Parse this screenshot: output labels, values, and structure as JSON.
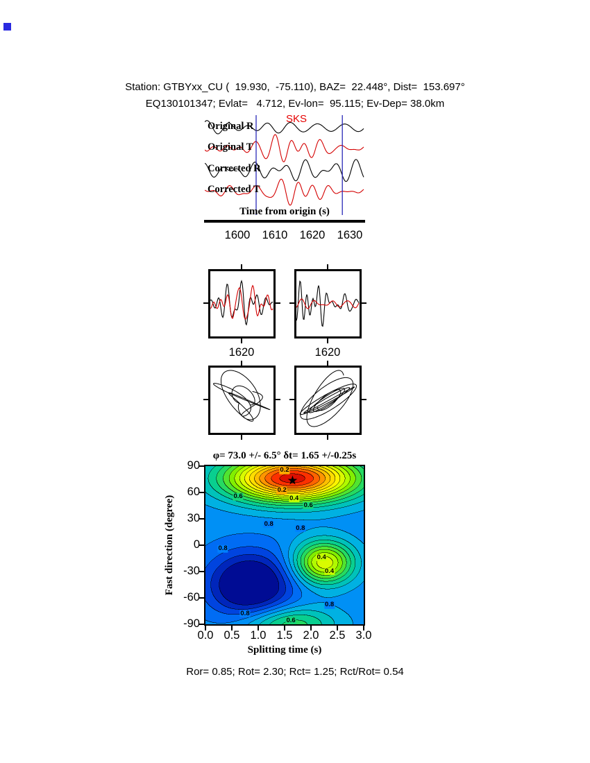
{
  "header": {
    "line1": "Station: GTBYxx_CU (  19.930,  -75.110), BAZ=  22.448°, Dist=  153.697°",
    "line2": "EQ130101347; Evlat=   4.712, Ev-lon=  95.115; Ev-Dep= 38.0km"
  },
  "corner_marker": {
    "color": "#2a2ae0"
  },
  "waveform_panel": {
    "phase_label": "SKS",
    "phase_color": "#e60000",
    "traces": [
      {
        "label": "Original R",
        "color": "#000000"
      },
      {
        "label": "Original T",
        "color": "#d40000"
      },
      {
        "label": "Corrected R",
        "color": "#000000"
      },
      {
        "label": "Corrected T",
        "color": "#d40000"
      }
    ],
    "window_t": [
      1605,
      1628
    ],
    "window_color": "#2929b8",
    "xaxis": {
      "label": "Time from origin (s)",
      "ticks": [
        "1600",
        "1610",
        "1620",
        "1630"
      ]
    }
  },
  "zoom_boxes": {
    "ticks": [
      "1620",
      "1620"
    ]
  },
  "contour": {
    "title": "φ= 73.0 +/- 6.5° δt= 1.65 +/-0.25s",
    "ylabel": "Fast direction (degree)",
    "xlabel": "Splitting time (s)",
    "yticks": [
      "90",
      "60",
      "30",
      "0",
      "-30",
      "-60",
      "-90"
    ],
    "xticks": [
      "0.0",
      "0.5",
      "1.0",
      "1.5",
      "2.0",
      "2.5",
      "3.0"
    ],
    "star": {
      "t": 1.65,
      "phi": 73,
      "glyph": "★"
    },
    "labels": [
      {
        "t": 1.5,
        "phi": 85,
        "v": "0.2"
      },
      {
        "t": 0.62,
        "phi": 55,
        "v": "0.6"
      },
      {
        "t": 1.45,
        "phi": 62,
        "v": "0.2"
      },
      {
        "t": 1.68,
        "phi": 53,
        "v": "0.4"
      },
      {
        "t": 1.95,
        "phi": 45,
        "v": "0.6"
      },
      {
        "t": 1.2,
        "phi": 24,
        "v": "0.8"
      },
      {
        "t": 1.8,
        "phi": 19,
        "v": "0.8"
      },
      {
        "t": 0.33,
        "phi": -4,
        "v": "0.8"
      },
      {
        "t": 2.2,
        "phi": -14,
        "v": "0.4"
      },
      {
        "t": 2.35,
        "phi": -30,
        "v": "0.4"
      },
      {
        "t": 0.75,
        "phi": -78,
        "v": "0.8"
      },
      {
        "t": 1.62,
        "phi": -86,
        "v": "0.6"
      },
      {
        "t": 2.35,
        "phi": -68,
        "v": "0.8"
      }
    ],
    "colormap": [
      [
        0.0,
        "#cc0000"
      ],
      [
        0.08,
        "#ff3300"
      ],
      [
        0.16,
        "#ff8800"
      ],
      [
        0.24,
        "#ffcc00"
      ],
      [
        0.32,
        "#fff200"
      ],
      [
        0.4,
        "#c8ff00"
      ],
      [
        0.48,
        "#7dee00"
      ],
      [
        0.56,
        "#2edd55"
      ],
      [
        0.64,
        "#00cc9c"
      ],
      [
        0.72,
        "#00b4e0"
      ],
      [
        0.8,
        "#0080ff"
      ],
      [
        0.88,
        "#0040dd"
      ],
      [
        0.95,
        "#0018a8"
      ],
      [
        1.0,
        "#000080"
      ]
    ]
  },
  "footer": {
    "stats": "Ror= 0.85; Rot= 2.30; Rct= 1.25; Rct/Rot= 0.54"
  },
  "chart_data": [
    {
      "type": "line",
      "title": "Seismogram panel",
      "xlabel": "Time from origin (s)",
      "x_range": [
        1591,
        1634
      ],
      "xticks": [
        1600,
        1610,
        1620,
        1630
      ],
      "series": [
        {
          "name": "Original R",
          "color": "black"
        },
        {
          "name": "Original T",
          "color": "red"
        },
        {
          "name": "Corrected R",
          "color": "black"
        },
        {
          "name": "Corrected T",
          "color": "red"
        }
      ],
      "phase_pick": "SKS",
      "analysis_window_s": [
        1605,
        1628
      ]
    },
    {
      "type": "line",
      "title": "Windowed waveform pairs (R black / T red), before and after correction",
      "xticks": [
        1620,
        1620
      ]
    },
    {
      "type": "scatter",
      "title": "Particle motion hodograms, before (left, elliptical) and after (right, linearized) correction"
    },
    {
      "type": "heatmap",
      "title": "φ= 73.0 +/- 6.5° δt= 1.65 +/-0.25s",
      "xlabel": "Splitting time (s)",
      "ylabel": "Fast direction (degree)",
      "xlim": [
        0,
        3
      ],
      "ylim": [
        -90,
        90
      ],
      "xticks": [
        0.0,
        0.5,
        1.0,
        1.5,
        2.0,
        2.5,
        3.0
      ],
      "yticks": [
        90,
        60,
        30,
        0,
        -30,
        -60,
        -90
      ],
      "contour_levels": [
        0.2,
        0.4,
        0.6,
        0.8
      ],
      "best_solution": {
        "fast_direction_deg": 73.0,
        "fast_direction_err_deg": 6.5,
        "split_time_s": 1.65,
        "split_time_err_s": 0.25
      },
      "minimum_region": {
        "t": 1.65,
        "phi": 76,
        "note": "red region with star marker"
      },
      "secondary_minimum": {
        "t": 2.25,
        "phi": -20,
        "level": 0.4
      },
      "maximum_region": {
        "t": 0.85,
        "phi": -45,
        "note": "dark navy region"
      }
    },
    {
      "type": "table",
      "title": "Quality measures",
      "values": {
        "Ror": 0.85,
        "Rot": 2.3,
        "Rct": 1.25,
        "Rct_over_Rot": 0.54
      },
      "station": {
        "name": "GTBYxx_CU",
        "lat": 19.93,
        "lon": -75.11,
        "baz_deg": 22.448,
        "dist_deg": 153.697
      },
      "event": {
        "id": "EQ130101347",
        "lat": 4.712,
        "lon": 95.115,
        "depth_km": 38.0
      }
    }
  ]
}
